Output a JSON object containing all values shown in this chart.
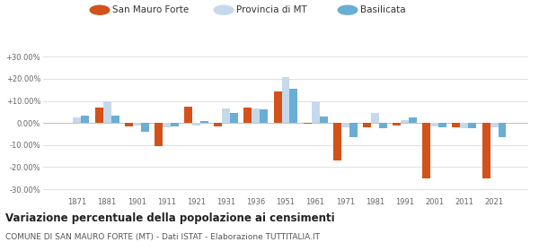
{
  "years": [
    1871,
    1881,
    1901,
    1911,
    1921,
    1931,
    1936,
    1951,
    1961,
    1971,
    1981,
    1991,
    2001,
    2011,
    2021
  ],
  "san_mauro": [
    0.0,
    7.0,
    -1.5,
    -10.5,
    7.5,
    -1.5,
    7.0,
    14.5,
    -0.5,
    -17.0,
    -2.0,
    -1.0,
    -25.0,
    -2.0,
    -25.0
  ],
  "provincia_mt": [
    2.5,
    10.0,
    -1.0,
    -2.0,
    -1.0,
    6.5,
    6.5,
    21.0,
    9.5,
    -2.0,
    4.5,
    1.5,
    -1.5,
    -2.5,
    -2.0
  ],
  "basilicata": [
    3.5,
    3.5,
    -4.0,
    -1.5,
    1.0,
    4.5,
    6.0,
    15.5,
    3.0,
    -6.5,
    -2.5,
    2.5,
    -2.0,
    -2.5,
    -6.5
  ],
  "color_san_mauro": "#d2521a",
  "color_provincia": "#c5d9ed",
  "color_basilicata": "#6aadd5",
  "title": "Variazione percentuale della popolazione ai censimenti",
  "subtitle": "COMUNE DI SAN MAURO FORTE (MT) - Dati ISTAT - Elaborazione TUTTITALIA.IT",
  "yticks": [
    -30,
    -20,
    -10,
    0,
    10,
    20,
    30
  ],
  "ylim": [
    -33,
    33
  ],
  "background_color": "#ffffff",
  "grid_color": "#e0e0e0"
}
